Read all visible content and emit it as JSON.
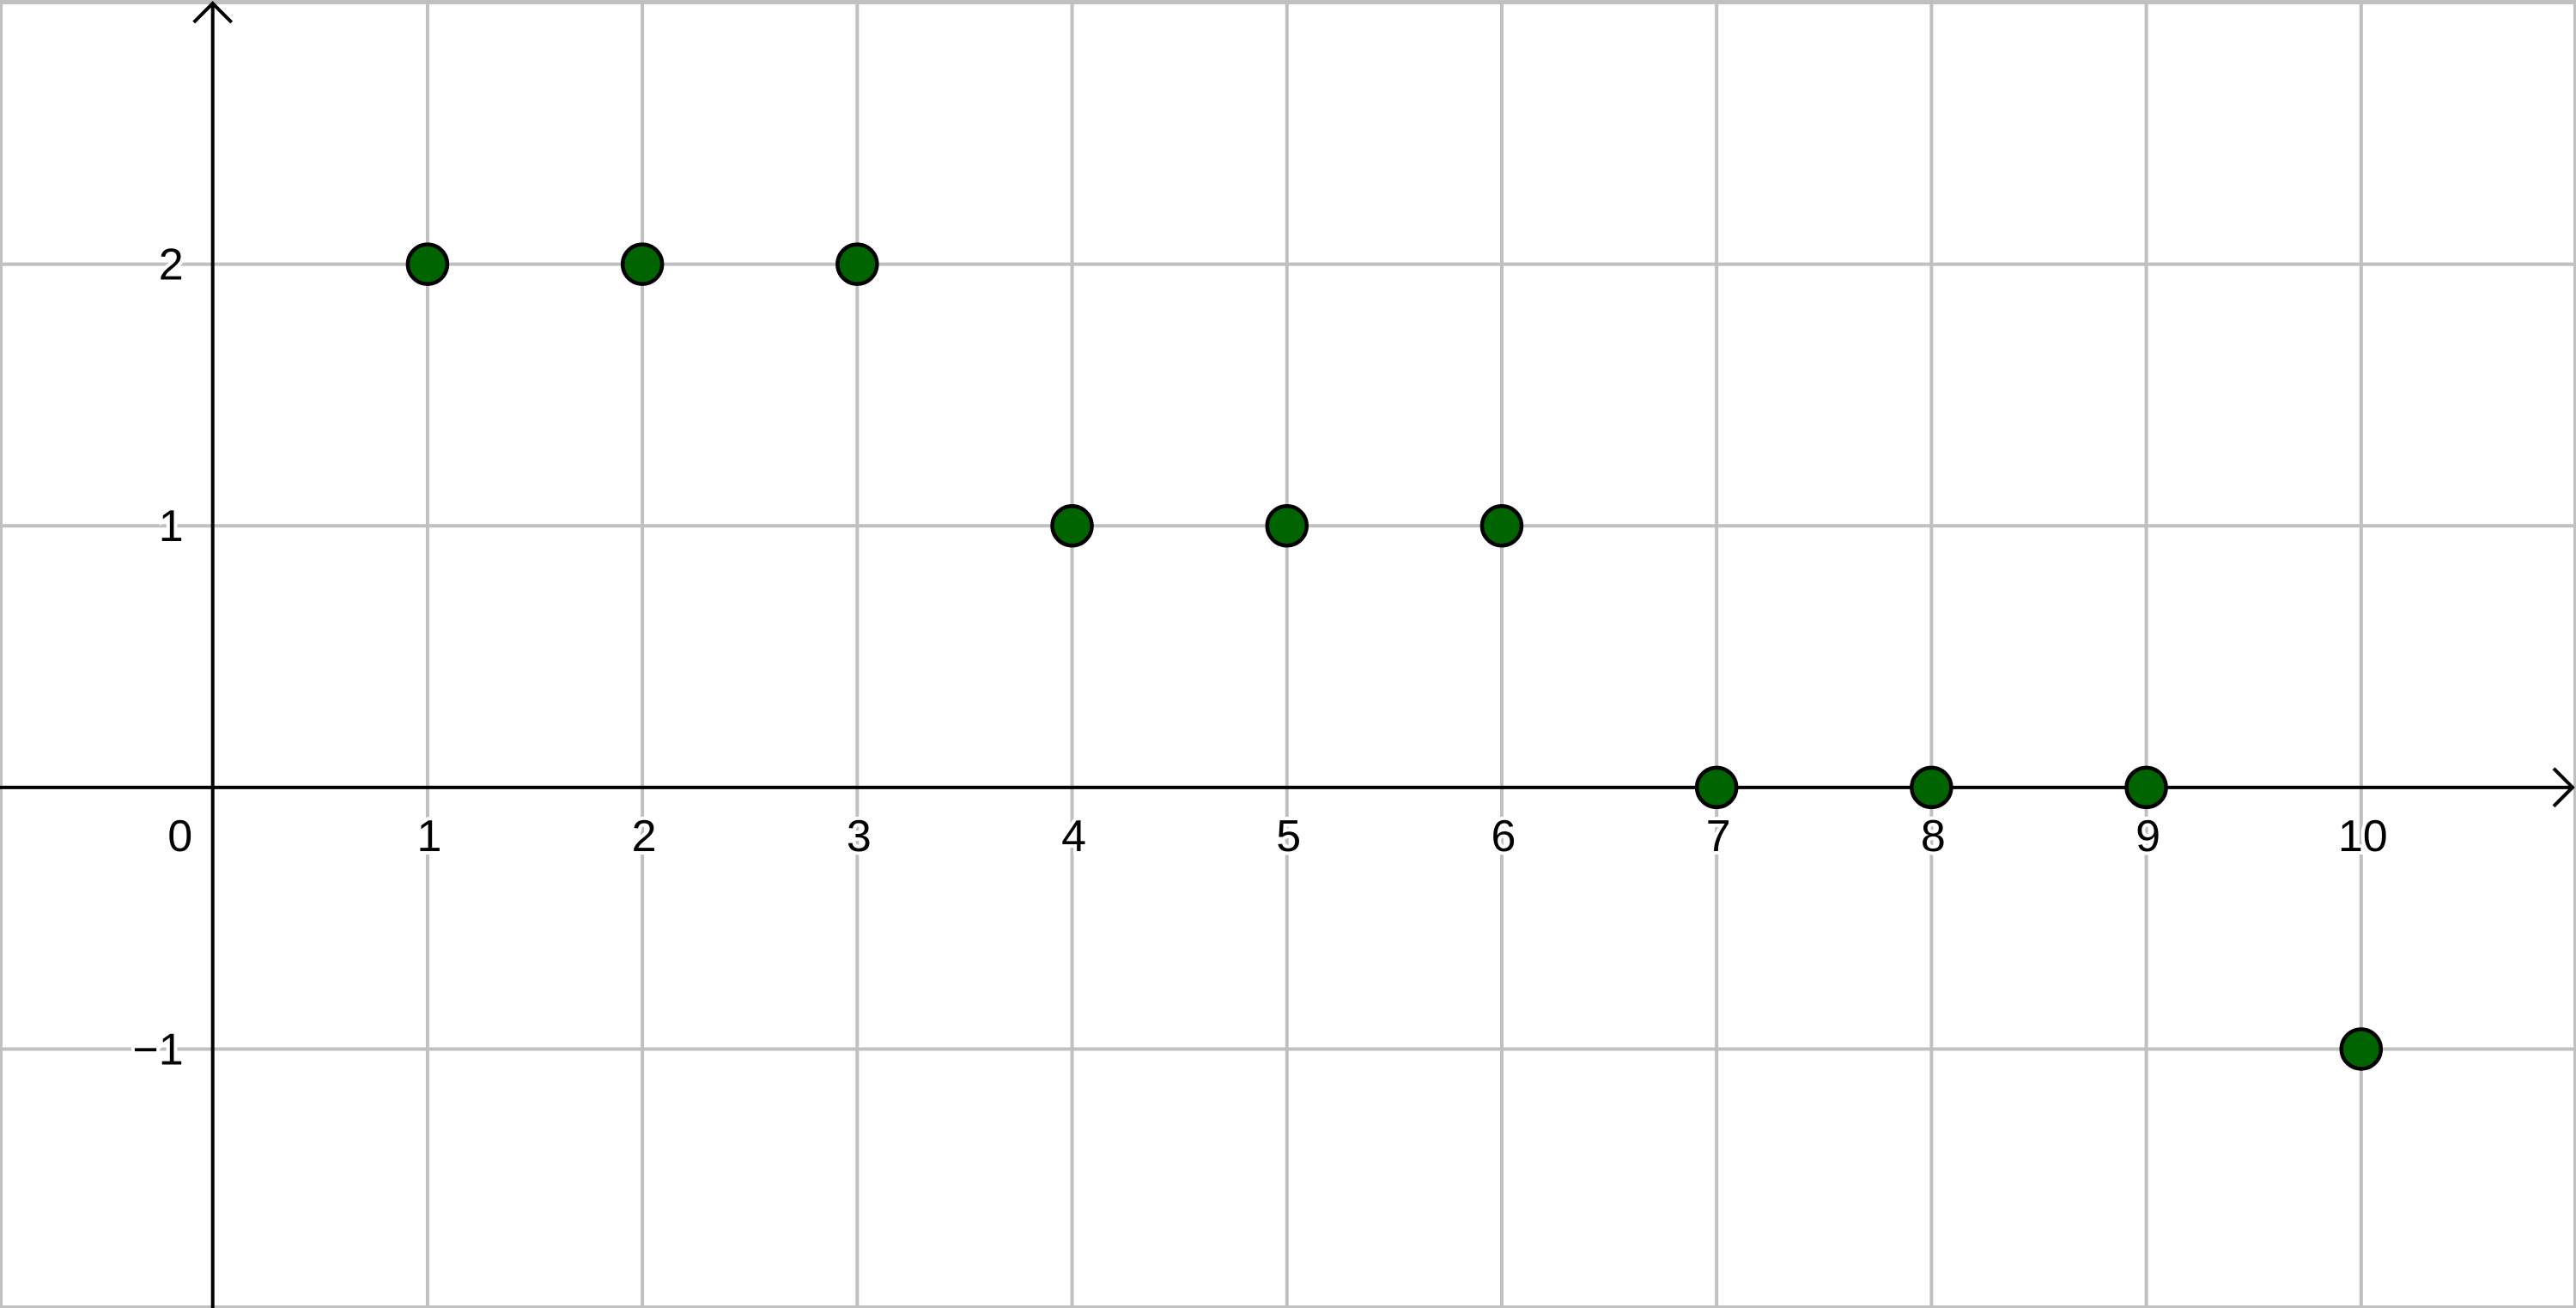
{
  "chart_data": {
    "type": "scatter",
    "title": "",
    "xlabel": "",
    "ylabel": "",
    "xlim": [
      -0.99,
      11.0
    ],
    "ylim": [
      -1.99,
      3.01
    ],
    "grid": true,
    "x_ticks": [
      0,
      1,
      2,
      3,
      4,
      5,
      6,
      7,
      8,
      9,
      10
    ],
    "y_ticks": [
      -1,
      1,
      2
    ],
    "x_tick_labels": [
      "0",
      "1",
      "2",
      "3",
      "4",
      "5",
      "6",
      "7",
      "8",
      "9",
      "10"
    ],
    "y_tick_labels": [
      "−1",
      "1",
      "2"
    ],
    "series": [
      {
        "color": "#006400",
        "points": [
          {
            "x": 1,
            "y": 2
          },
          {
            "x": 2,
            "y": 2
          },
          {
            "x": 3,
            "y": 2
          },
          {
            "x": 4,
            "y": 1
          },
          {
            "x": 5,
            "y": 1
          },
          {
            "x": 6,
            "y": 1
          },
          {
            "x": 7,
            "y": 0
          },
          {
            "x": 8,
            "y": 0
          },
          {
            "x": 9,
            "y": 0
          },
          {
            "x": 10,
            "y": -1
          }
        ]
      }
    ]
  }
}
